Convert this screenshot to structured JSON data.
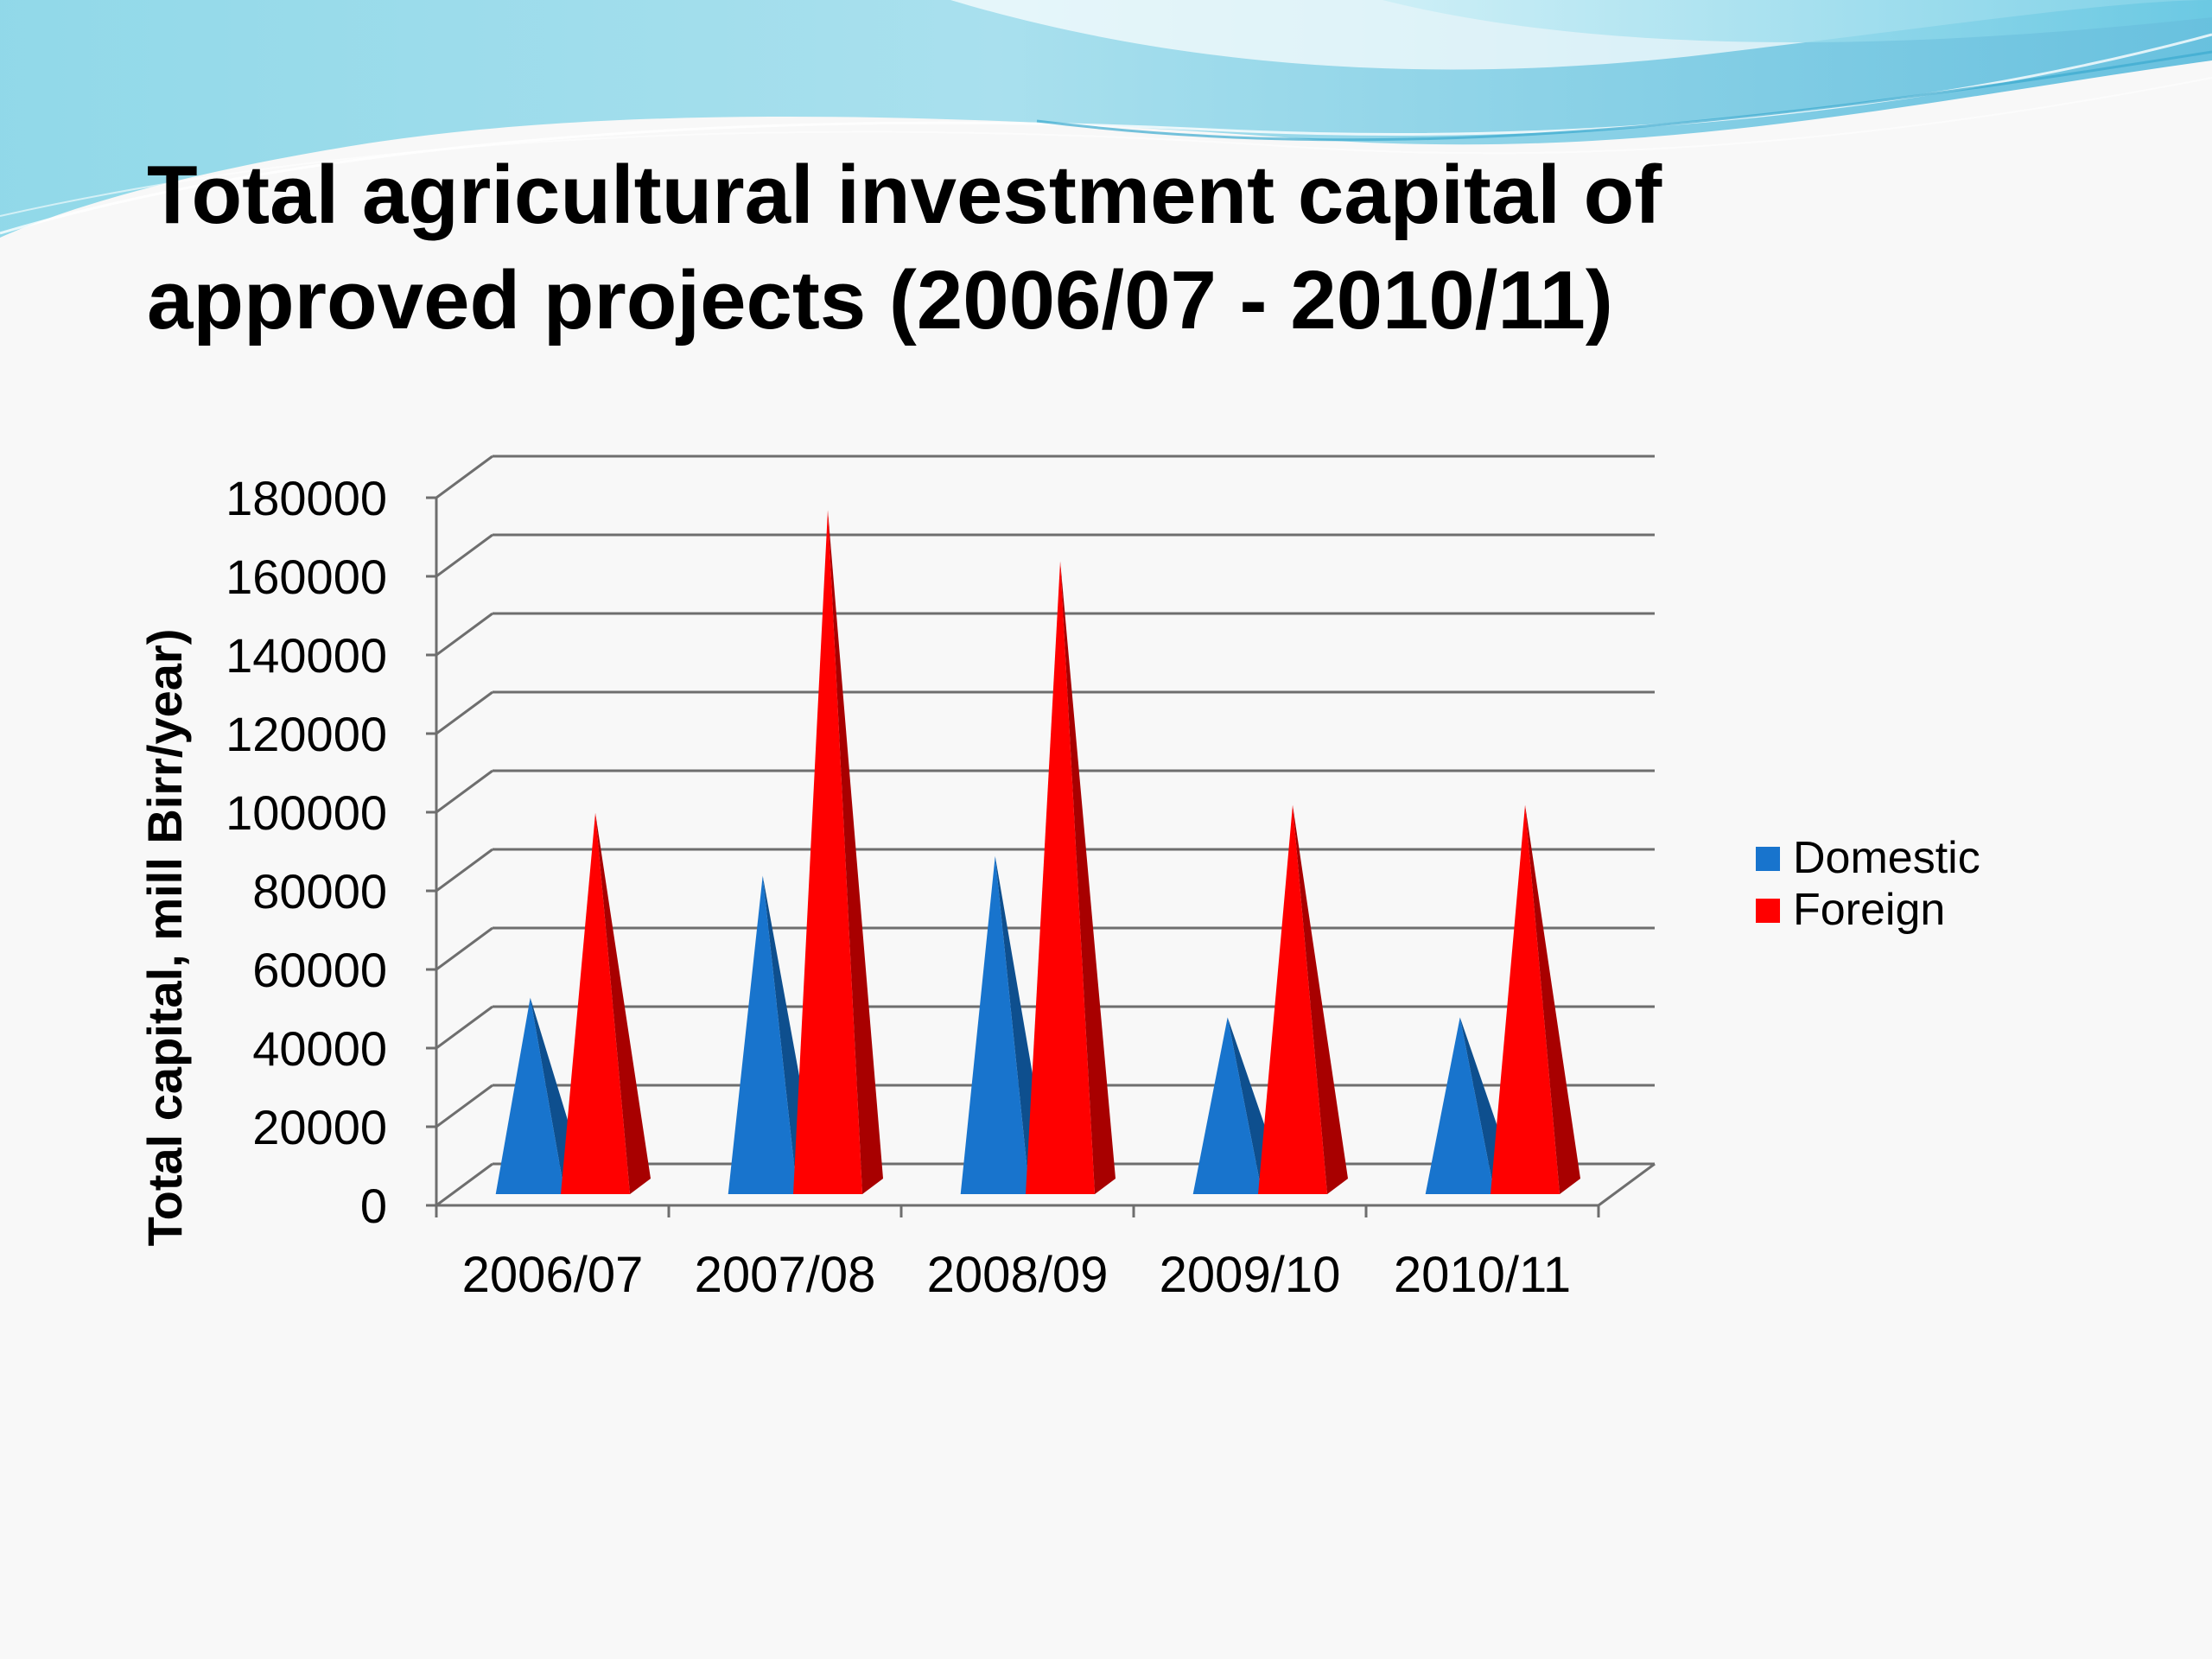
{
  "slide": {
    "title_line1": "Total agricultural investment capital of",
    "title_line2": "approved projects (2006/07 - 2010/11)"
  },
  "colors": {
    "domestic": "#1874cd",
    "domestic_dark": "#0e4f8e",
    "foreign": "#ff0000",
    "foreign_dark": "#a80000",
    "grid": "#6e6e6e",
    "wave_light": "#a8e2ef",
    "wave_mid": "#6cc8e0",
    "wave_dark": "#3aa9cf"
  },
  "chart_data": {
    "type": "bar",
    "style": "3d-cone",
    "title": "",
    "xlabel": "",
    "ylabel": "Total capital, mill Birr/year)",
    "ylim": [
      0,
      180000
    ],
    "yticks": [
      "0",
      "20000",
      "40000",
      "60000",
      "80000",
      "100000",
      "120000",
      "140000",
      "160000",
      "180000"
    ],
    "categories": [
      "2006/07",
      "2007/08",
      "2008/09",
      "2009/10",
      "2010/11"
    ],
    "series": [
      {
        "name": "Domestic",
        "values": [
          48000,
          79000,
          84000,
          43000,
          43000
        ]
      },
      {
        "name": "Foreign",
        "values": [
          95000,
          172000,
          159000,
          97000,
          97000
        ]
      }
    ],
    "legend": "right",
    "grid": true
  }
}
